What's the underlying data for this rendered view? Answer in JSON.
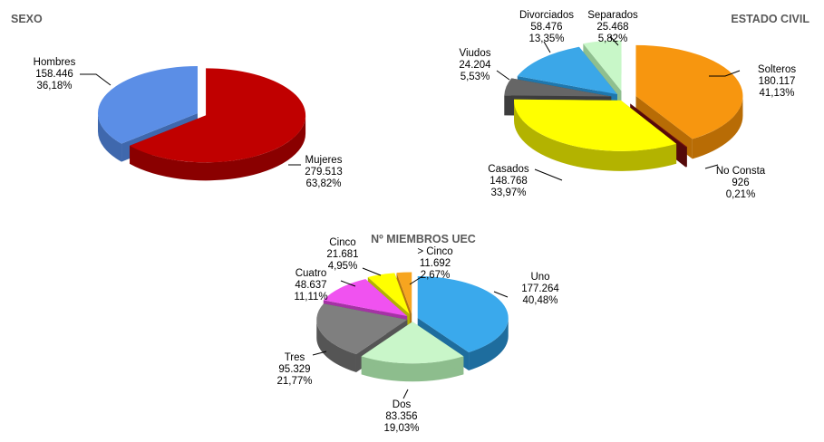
{
  "chart_data": [
    {
      "type": "pie",
      "title": "SEXO",
      "slices": [
        {
          "name": "Mujeres",
          "value": "279.513",
          "percent": "63,82%",
          "color": "#c00000",
          "side": "#8a0000",
          "fraction": 0.6382
        },
        {
          "name": "Hombres",
          "value": "158.446",
          "percent": "36,18%",
          "color": "#5b8ee6",
          "side": "#3f68ad",
          "fraction": 0.3618
        }
      ]
    },
    {
      "type": "pie",
      "title": "ESTADO CIVIL",
      "slices": [
        {
          "name": "Solteros",
          "value": "180.117",
          "percent": "41,13%",
          "color": "#f7960f",
          "side": "#b86c05",
          "fraction": 0.4113
        },
        {
          "name": "No Consta",
          "value": "926",
          "percent": "0,21%",
          "color": "#7a1111",
          "side": "#550a0a",
          "fraction": 0.0021
        },
        {
          "name": "Casados",
          "value": "148.768",
          "percent": "33,97%",
          "color": "#ffff00",
          "side": "#b3b300",
          "fraction": 0.3397
        },
        {
          "name": "Viudos",
          "value": "24.204",
          "percent": "5,53%",
          "color": "#666666",
          "side": "#3d3d3d",
          "fraction": 0.0553
        },
        {
          "name": "Divorciados",
          "value": "58.476",
          "percent": "13,35%",
          "color": "#3ba7e8",
          "side": "#1f77ad",
          "fraction": 0.1335
        },
        {
          "name": "Separados",
          "value": "25.468",
          "percent": "5,82%",
          "color": "#c8f7c8",
          "side": "#8fbf8f",
          "fraction": 0.0582
        }
      ]
    },
    {
      "type": "pie",
      "title": "Nº MIEMBROS UEC",
      "slices": [
        {
          "name": "Uno",
          "value": "177.264",
          "percent": "40,48%",
          "color": "#3aa9ec",
          "side": "#1e6d9e",
          "fraction": 0.4048
        },
        {
          "name": "Dos",
          "value": "83.356",
          "percent": "19,03%",
          "color": "#c9f6c9",
          "side": "#8dbd8d",
          "fraction": 0.1903
        },
        {
          "name": "Tres",
          "value": "95.329",
          "percent": "21,77%",
          "color": "#7f7f7f",
          "side": "#555555",
          "fraction": 0.2177
        },
        {
          "name": "Cuatro",
          "value": "48.637",
          "percent": "11,11%",
          "color": "#f052f0",
          "side": "#a532a5",
          "fraction": 0.1111
        },
        {
          "name": "Cinco",
          "value": "21.681",
          "percent": "4,95%",
          "color": "#ffff00",
          "side": "#b3b300",
          "fraction": 0.0495
        },
        {
          "name": "> Cinco",
          "value": "11.692",
          "percent": "2,67%",
          "color": "#f7a51f",
          "side": "#b47510",
          "fraction": 0.0267
        }
      ]
    }
  ]
}
